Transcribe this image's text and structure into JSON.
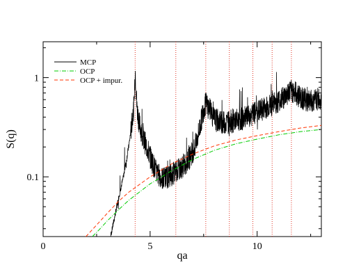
{
  "chart_data": {
    "type": "line",
    "xlabel": "qa",
    "ylabel": "S(q)",
    "xlim": [
      0,
      13
    ],
    "ylim": [
      0.025,
      2.3
    ],
    "yscale": "log",
    "x_ticks": [
      0,
      5,
      10
    ],
    "y_ticks": [
      0.1,
      1
    ],
    "y_tick_labels": [
      "0.1",
      "1"
    ],
    "grid": false,
    "legend_position": "top-left",
    "vertical_markers": [
      4.3,
      6.2,
      7.6,
      8.7,
      9.8,
      10.7,
      11.6
    ],
    "series": [
      {
        "name": "MCP",
        "color": "#000000",
        "style": "solid",
        "noisy": true,
        "x": [
          3.15,
          3.35,
          3.55,
          3.75,
          3.9,
          4.05,
          4.15,
          4.25,
          4.3,
          4.38,
          4.5,
          4.7,
          5.0,
          5.3,
          5.6,
          6.0,
          6.4,
          6.8,
          7.1,
          7.3,
          7.5,
          7.6,
          7.75,
          8.0,
          8.4,
          8.8,
          9.2,
          9.6,
          10.0,
          10.4,
          10.8,
          11.2,
          11.5,
          11.7,
          12.0,
          12.4,
          12.8,
          13.0
        ],
        "y": [
          0.025,
          0.04,
          0.065,
          0.1,
          0.15,
          0.24,
          0.36,
          0.52,
          1.25,
          0.5,
          0.34,
          0.24,
          0.16,
          0.11,
          0.095,
          0.105,
          0.12,
          0.15,
          0.2,
          0.3,
          0.48,
          0.55,
          0.5,
          0.38,
          0.35,
          0.36,
          0.38,
          0.4,
          0.45,
          0.5,
          0.55,
          0.62,
          0.72,
          0.73,
          0.64,
          0.58,
          0.6,
          0.62
        ]
      },
      {
        "name": "OCP",
        "color": "#00cc00",
        "style": "dash-dot",
        "x": [
          2.3,
          2.6,
          3.0,
          3.5,
          4.0,
          5.0,
          6.0,
          7.0,
          8.0,
          9.0,
          10.0,
          11.0,
          12.0,
          13.0
        ],
        "y": [
          0.025,
          0.029,
          0.036,
          0.046,
          0.058,
          0.085,
          0.115,
          0.15,
          0.185,
          0.215,
          0.24,
          0.265,
          0.285,
          0.3
        ]
      },
      {
        "name": "OCP + impur.",
        "color": "#ff3300",
        "style": "dashed",
        "x": [
          2.0,
          2.4,
          3.0,
          3.5,
          4.0,
          5.0,
          6.0,
          7.0,
          8.0,
          9.0,
          10.0,
          11.0,
          12.0,
          13.0
        ],
        "y": [
          0.025,
          0.031,
          0.043,
          0.056,
          0.07,
          0.1,
          0.135,
          0.17,
          0.205,
          0.235,
          0.26,
          0.285,
          0.31,
          0.33
        ]
      }
    ]
  }
}
